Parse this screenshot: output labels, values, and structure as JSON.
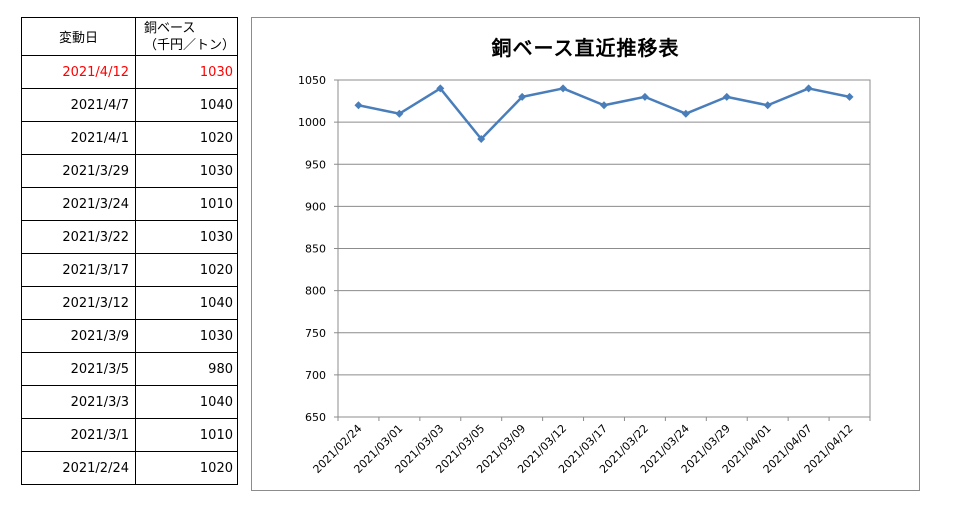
{
  "table": {
    "header": {
      "date": "変動日",
      "value_line1": "銅ベース",
      "value_line2": "（千円／トン）"
    },
    "rows": [
      {
        "date": "2021/4/12",
        "value": "1030",
        "highlight": true
      },
      {
        "date": "2021/4/7",
        "value": "1040"
      },
      {
        "date": "2021/4/1",
        "value": "1020"
      },
      {
        "date": "2021/3/29",
        "value": "1030"
      },
      {
        "date": "2021/3/24",
        "value": "1010"
      },
      {
        "date": "2021/3/22",
        "value": "1030"
      },
      {
        "date": "2021/3/17",
        "value": "1020"
      },
      {
        "date": "2021/3/12",
        "value": "1040"
      },
      {
        "date": "2021/3/9",
        "value": "1030"
      },
      {
        "date": "2021/3/5",
        "value": "980"
      },
      {
        "date": "2021/3/3",
        "value": "1040"
      },
      {
        "date": "2021/3/1",
        "value": "1010"
      },
      {
        "date": "2021/2/24",
        "value": "1020"
      }
    ],
    "highlight_color": "#ff0000"
  },
  "chart_data": {
    "type": "line",
    "title": "銅ベース直近推移表",
    "categories": [
      "2021/02/24",
      "2021/03/01",
      "2021/03/03",
      "2021/03/05",
      "2021/03/09",
      "2021/03/12",
      "2021/03/17",
      "2021/03/22",
      "2021/03/24",
      "2021/03/29",
      "2021/04/01",
      "2021/04/07",
      "2021/04/12"
    ],
    "series": [
      {
        "values": [
          1020,
          1010,
          1040,
          980,
          1030,
          1040,
          1020,
          1030,
          1010,
          1030,
          1020,
          1040,
          1030
        ],
        "color": "#4a7ebb"
      }
    ],
    "ylim": [
      650,
      1050
    ],
    "yticks": [
      650,
      700,
      750,
      800,
      850,
      900,
      950,
      1000,
      1050
    ],
    "grid": true,
    "marker": "diamond"
  }
}
